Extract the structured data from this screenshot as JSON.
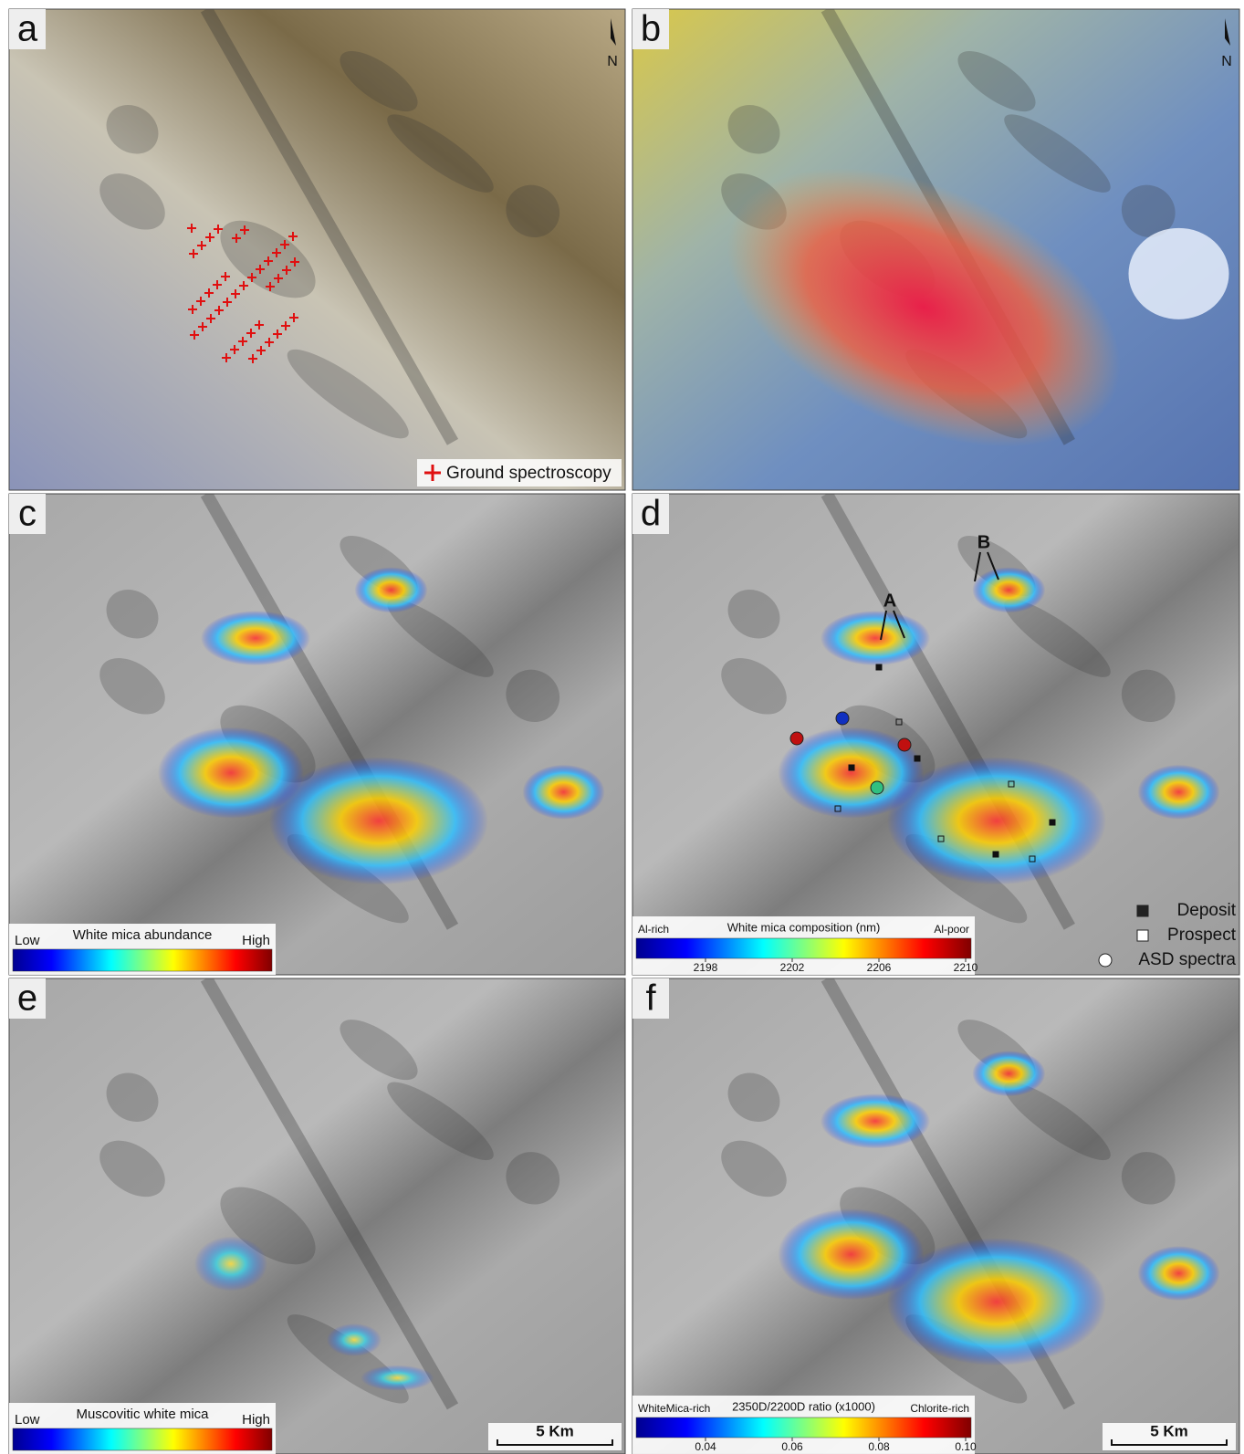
{
  "panels": [
    {
      "label": "a",
      "north": "N",
      "legend": "Ground spectroscopy"
    },
    {
      "label": "b",
      "north": "N"
    },
    {
      "label": "c",
      "colorbar": {
        "low": "Low",
        "title": "White mica abundance",
        "high": "High"
      }
    },
    {
      "label": "d",
      "annotations": [
        "A",
        "B"
      ],
      "colorbar": {
        "low": "Al-rich",
        "title": "White mica composition (nm)",
        "high": "Al-poor",
        "ticks": [
          "2198",
          "2202",
          "2206",
          "2210"
        ]
      },
      "legend": [
        "Deposit",
        "Prospect",
        "ASD spectra"
      ]
    },
    {
      "label": "e",
      "colorbar": {
        "low": "Low",
        "title": "Muscovitic white mica",
        "high": "High"
      },
      "scale_bar": "5 Km"
    },
    {
      "label": "f",
      "colorbar": {
        "low": "WhiteMica-rich",
        "title": "2350D/2200D ratio (x1000)",
        "high": "Chlorite-rich",
        "ticks": [
          "0.04",
          "0.06",
          "0.08",
          "0.10"
        ]
      },
      "scale_bar": "5 Km"
    }
  ]
}
